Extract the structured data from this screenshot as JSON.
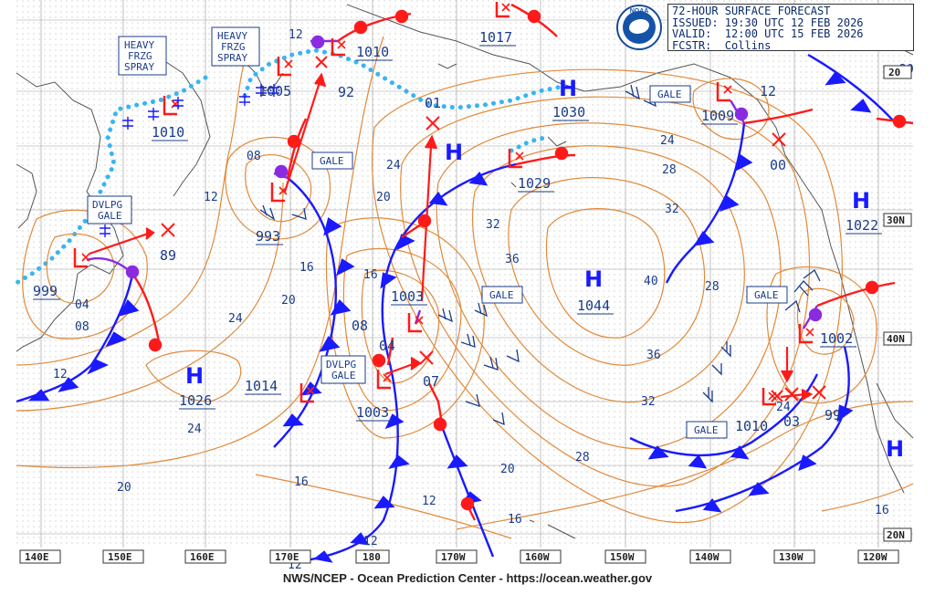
{
  "header": {
    "product": "72-HOUR SURFACE FORECAST",
    "issued": "ISSUED: 19:30 UTC 12 FEB 2026",
    "valid": "VALID:  12:00 UTC 15 FEB 2026",
    "forecaster": "FCSTR:  Collins"
  },
  "logo_text": "NOAA",
  "credit": "NWS/NCEP - Ocean Prediction Center - https://ocean.weather.gov",
  "longitude_labels": [
    "140E",
    "150E",
    "160E",
    "170E",
    "180",
    "170W",
    "160W",
    "150W",
    "140W",
    "130W",
    "120W"
  ],
  "latitude_labels": [
    "20",
    "30N",
    "40N",
    "20N"
  ],
  "pressure_centers": [
    {
      "type": "H",
      "value": "1026"
    },
    {
      "type": "H",
      "value": "1044"
    },
    {
      "type": "H",
      "value": "1022"
    },
    {
      "type": "H",
      "value": "1030"
    },
    {
      "type": "H",
      "value": ""
    },
    {
      "type": "L",
      "value": "999"
    },
    {
      "type": "L",
      "value": "993"
    },
    {
      "type": "L",
      "value": "1010"
    },
    {
      "type": "L",
      "value": "1005"
    },
    {
      "type": "L",
      "value": "1010"
    },
    {
      "type": "L",
      "value": "1017"
    },
    {
      "type": "L",
      "value": "1009"
    },
    {
      "type": "L",
      "value": "1029"
    },
    {
      "type": "L",
      "value": "1003"
    },
    {
      "type": "L",
      "value": "1003"
    },
    {
      "type": "L",
      "value": "1002"
    },
    {
      "type": "L",
      "value": "1010"
    },
    {
      "type": "L",
      "value": "03"
    }
  ],
  "forecast_values": [
    "89",
    "92",
    "01",
    "07",
    "00",
    "99",
    "04",
    "08",
    "12",
    "1014"
  ],
  "isobar_labels": [
    "12",
    "12",
    "08",
    "04",
    "08",
    "12",
    "16",
    "20",
    "24",
    "24",
    "20",
    "16",
    "20",
    "24",
    "28",
    "32",
    "36",
    "40",
    "36",
    "32",
    "28",
    "24",
    "20",
    "16",
    "12",
    "12",
    "16",
    "32",
    "28",
    "24",
    "12",
    "16",
    "20"
  ],
  "warning_boxes": [
    {
      "label": "HEAVY\nFRZG\nSPRAY"
    },
    {
      "label": "HEAVY\nFRZG\nSPRAY"
    },
    {
      "label": "DVLPG\nGALE"
    },
    {
      "label": "DVLPG\nGALE"
    },
    {
      "label": "GALE"
    },
    {
      "label": "GALE"
    },
    {
      "label": "GALE"
    },
    {
      "label": "GALE"
    },
    {
      "label": "GALE"
    }
  ],
  "colors": {
    "isobar": "#e08a3a",
    "cold_front": "#1a1aff",
    "warm_front": "#ff1a1a",
    "occluded": "#8a2be2",
    "ice_edge": "#3ab4f0",
    "label_text": "#1a3c8a",
    "coast": "#555555",
    "grid": "#888888"
  }
}
